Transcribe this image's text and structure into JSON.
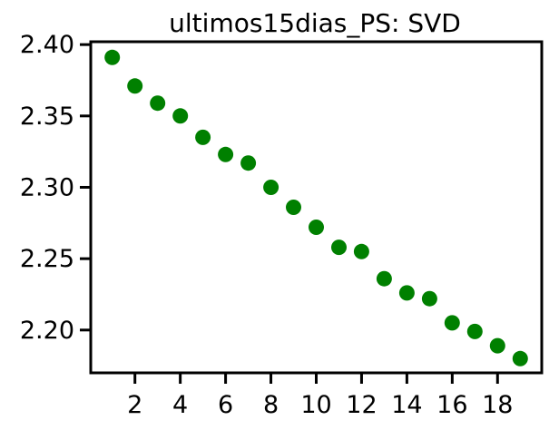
{
  "chart_data": {
    "type": "scatter",
    "title": "ultimos15dias_PS: SVD",
    "xlabel": "",
    "ylabel": "",
    "xlim": [
      0.05,
      19.95
    ],
    "ylim": [
      2.17,
      2.402
    ],
    "xticks": [
      2,
      4,
      6,
      8,
      10,
      12,
      14,
      16,
      18
    ],
    "xtick_labels": [
      "2",
      "4",
      "6",
      "8",
      "10",
      "12",
      "14",
      "16",
      "18"
    ],
    "yticks": [
      2.2,
      2.25,
      2.3,
      2.35,
      2.4
    ],
    "ytick_labels": [
      "2.20",
      "2.25",
      "2.30",
      "2.35",
      "2.40"
    ],
    "grid": false,
    "marker_color": "#008000",
    "series": [
      {
        "x": [
          1,
          2,
          3,
          4,
          5,
          6,
          7,
          8,
          9,
          10,
          11,
          12,
          13,
          14,
          15,
          16,
          17,
          18,
          19
        ],
        "y": [
          2.391,
          2.371,
          2.359,
          2.35,
          2.335,
          2.323,
          2.317,
          2.3,
          2.286,
          2.272,
          2.258,
          2.255,
          2.236,
          2.226,
          2.222,
          2.205,
          2.199,
          2.189,
          2.18
        ]
      }
    ]
  }
}
